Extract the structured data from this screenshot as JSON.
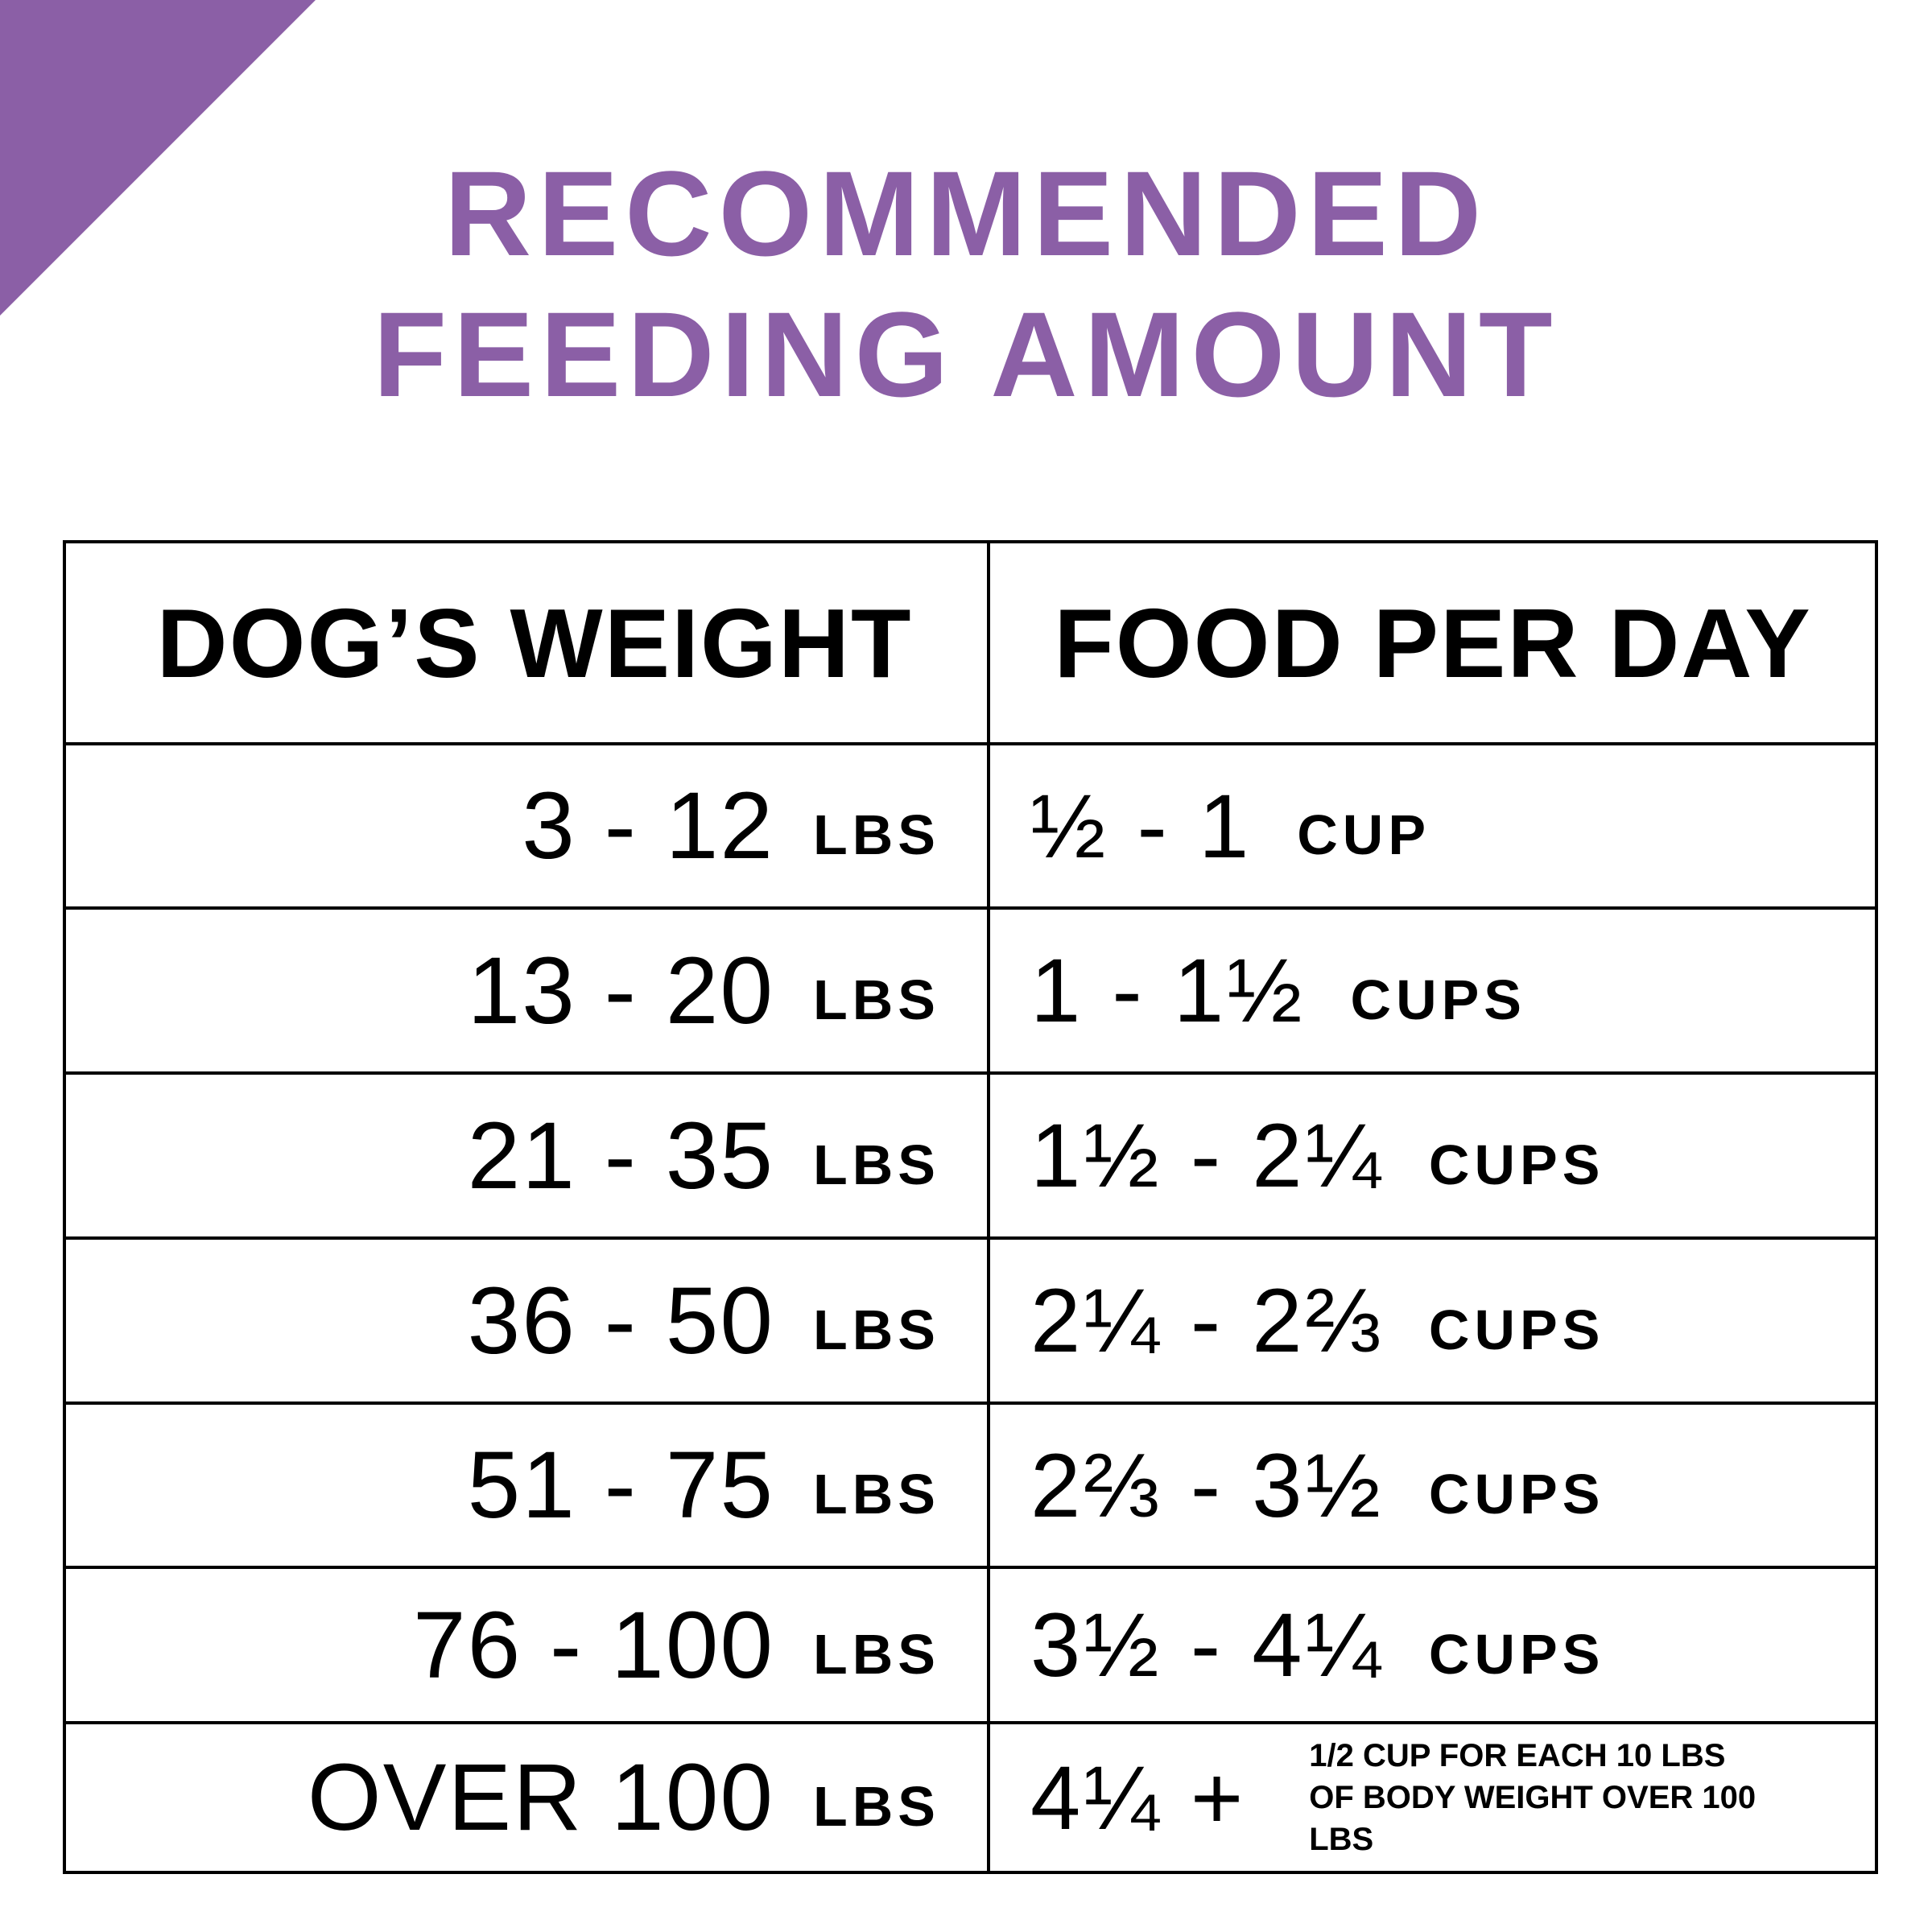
{
  "brand": {
    "accent_color": "#8b5fa6",
    "corner_shape": "purple triangle"
  },
  "title": {
    "line1": "RECOMMENDED",
    "line2": "FEEDING AMOUNT"
  },
  "table": {
    "headers": {
      "weight": "DOG’S WEIGHT",
      "food": "FOOD PER DAY"
    },
    "rows": [
      {
        "weight": "3 - 12",
        "weight_unit": "LBS",
        "food": "½ - 1",
        "food_unit": "CUP"
      },
      {
        "weight": "13 - 20",
        "weight_unit": "LBS",
        "food": "1 - 1½",
        "food_unit": "CUPS"
      },
      {
        "weight": "21 - 35",
        "weight_unit": "LBS",
        "food": "1½ - 2¼",
        "food_unit": "CUPS"
      },
      {
        "weight": "36 - 50",
        "weight_unit": "LBS",
        "food": "2¼ - 2⅔",
        "food_unit": "CUPS"
      },
      {
        "weight": "51 - 75",
        "weight_unit": "LBS",
        "food": "2⅔ - 3½",
        "food_unit": "CUPS"
      },
      {
        "weight": "76 - 100",
        "weight_unit": "LBS",
        "food": "3½ - 4¼",
        "food_unit": "CUPS"
      },
      {
        "weight": "OVER 100",
        "weight_unit": "LBS",
        "food": "4¼ +",
        "food_note": "1/2 CUP FOR EACH 10 LBS OF BODY WEIGHT OVER 100 LBS"
      }
    ]
  }
}
